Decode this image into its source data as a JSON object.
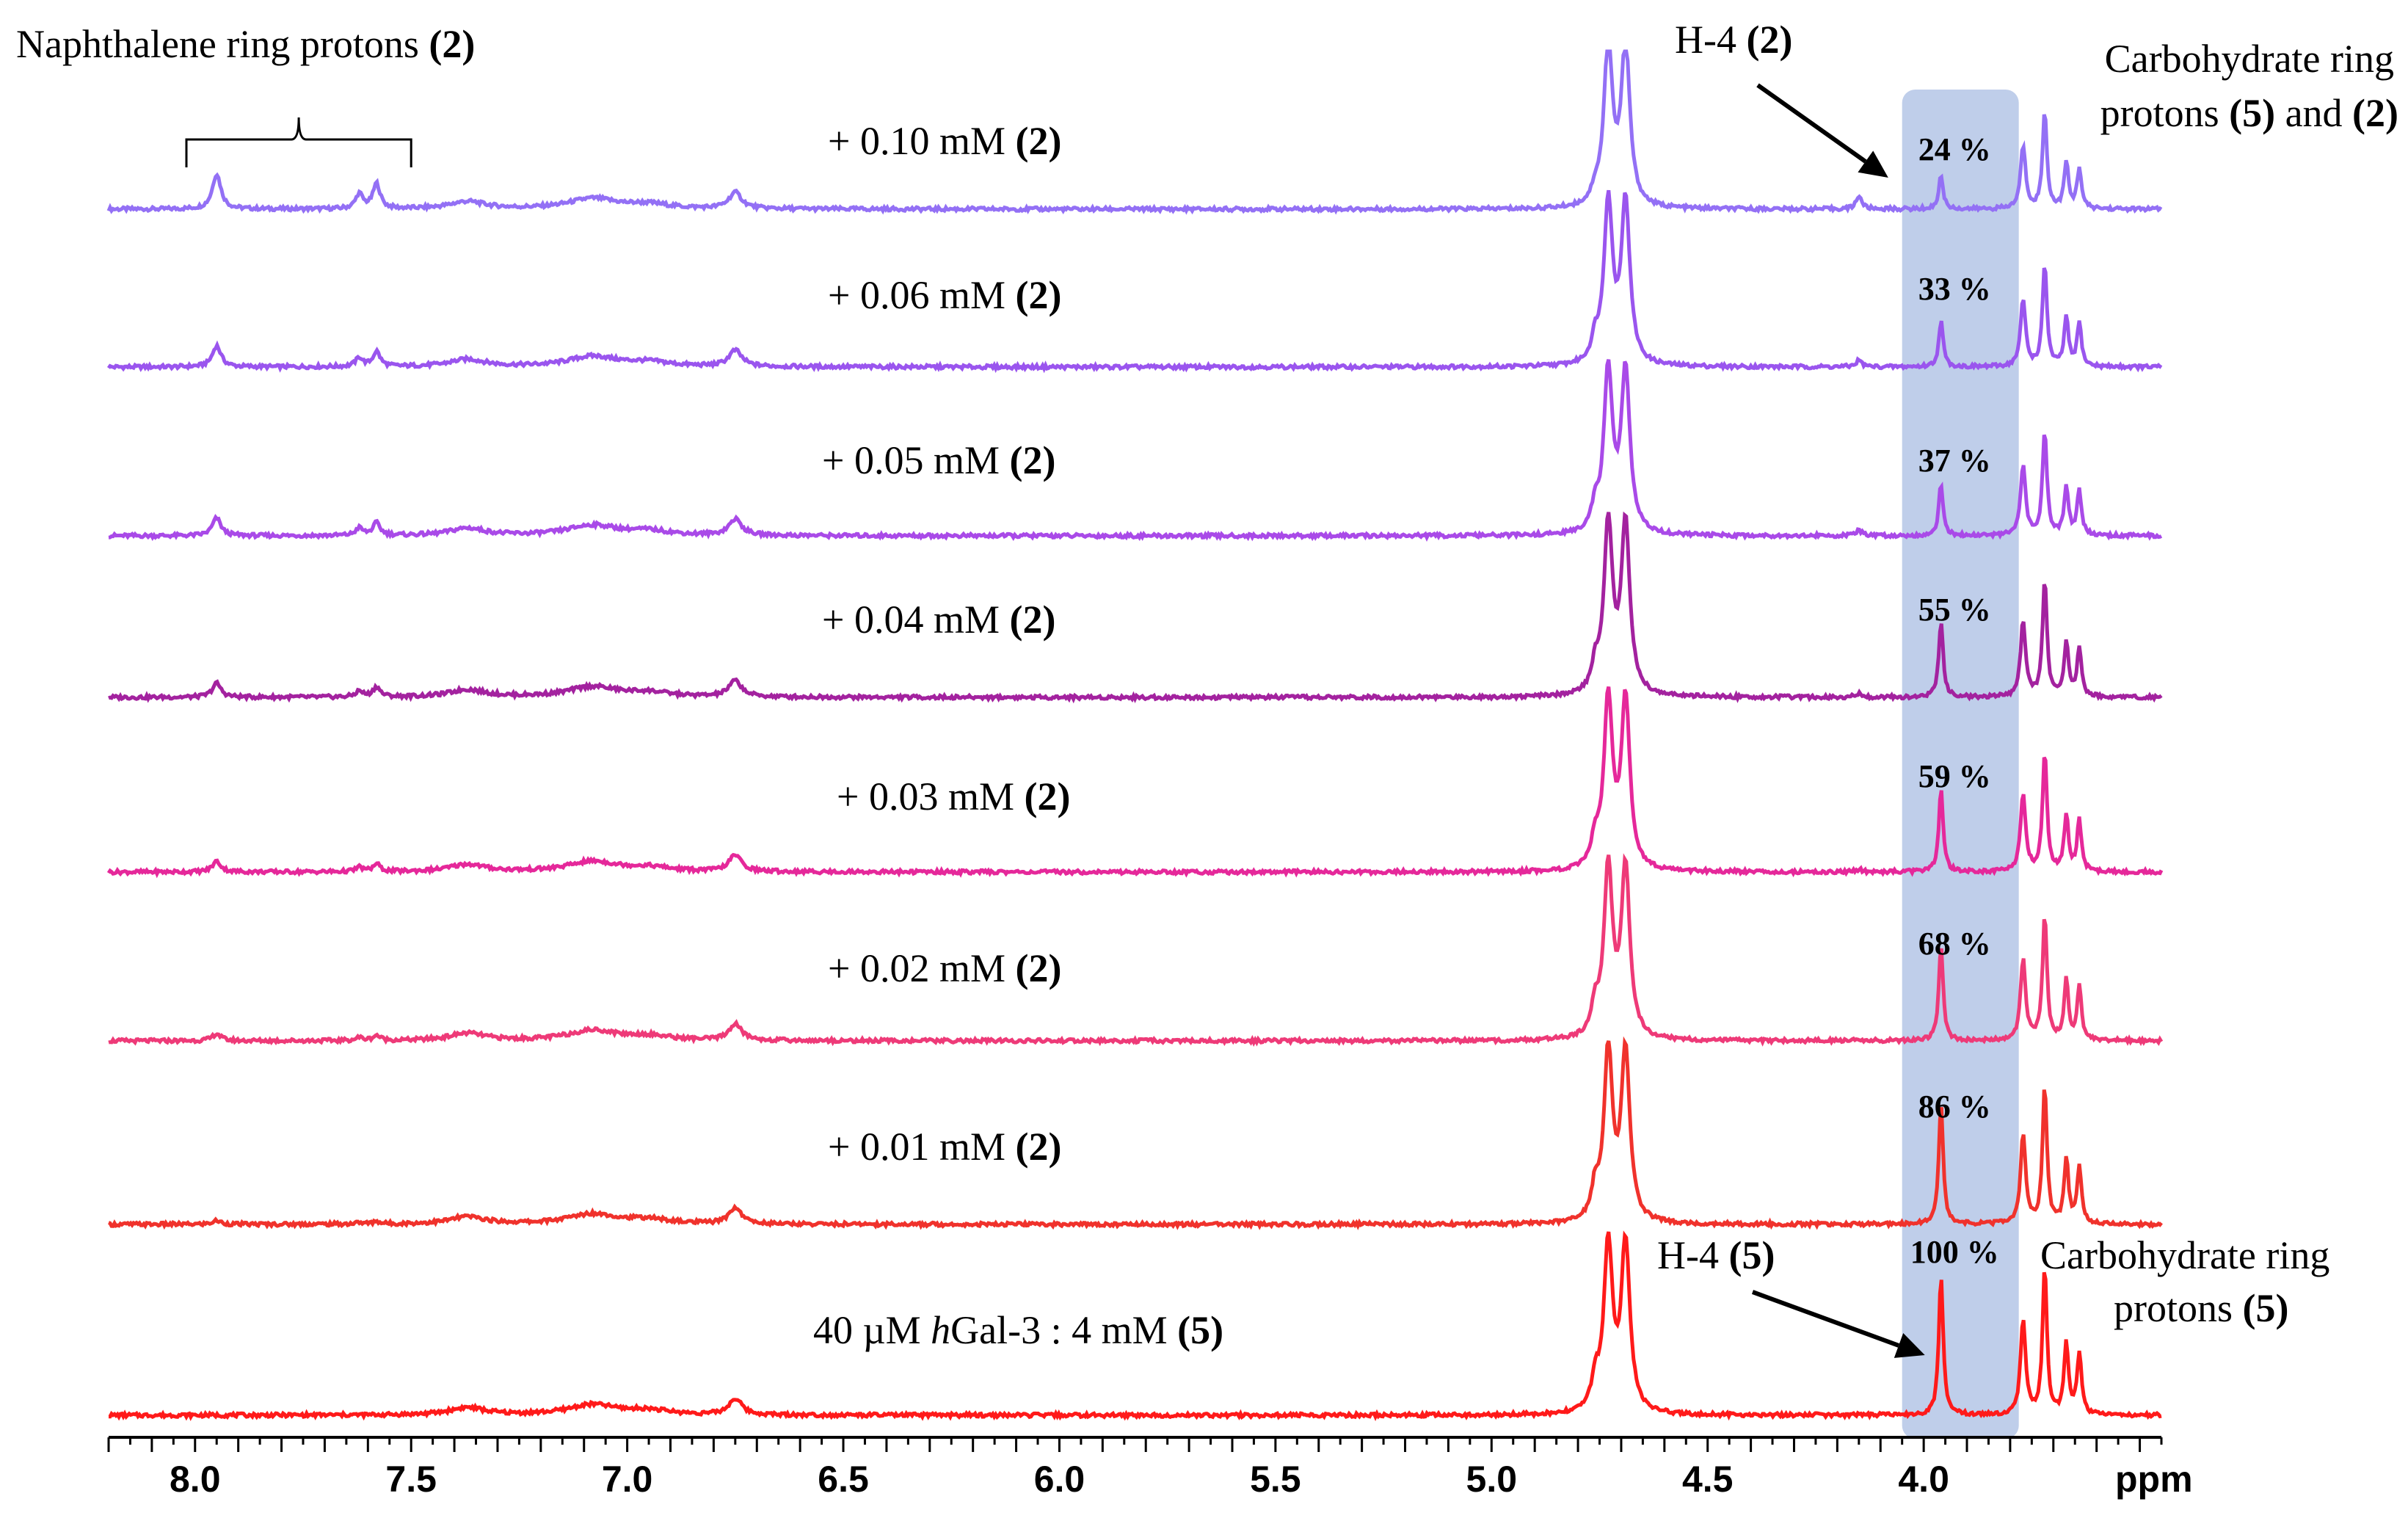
{
  "chart_data": {
    "type": "line",
    "title": "",
    "xlabel": "ppm",
    "ylabel": "",
    "xlim": [
      8.2,
      3.45
    ],
    "x_ticks": [
      {
        "value": 8.0,
        "label": "8.0"
      },
      {
        "value": 7.5,
        "label": "7.5"
      },
      {
        "value": 7.0,
        "label": "7.0"
      },
      {
        "value": 6.5,
        "label": "6.5"
      },
      {
        "value": 6.0,
        "label": "6.0"
      },
      {
        "value": 5.5,
        "label": "5.5"
      },
      {
        "value": 5.0,
        "label": "5.0"
      },
      {
        "value": 4.5,
        "label": "4.5"
      },
      {
        "value": 4.0,
        "label": "4.0"
      }
    ],
    "highlight_region_ppm": [
      4.05,
      3.78
    ],
    "series": [
      {
        "name_prefix": "+ 0.10 mM ",
        "name_cmpd": "(2)",
        "color": "#9370f5",
        "h4_label": "24 %",
        "h4_relative": 0.24,
        "naph": 1.0,
        "h4_2": 1.0
      },
      {
        "name_prefix": "+ 0.06 mM ",
        "name_cmpd": "(2)",
        "color": "#9a55ee",
        "h4_label": "33 %",
        "h4_relative": 0.33,
        "naph": 0.6,
        "h4_2": 0.5
      },
      {
        "name_prefix": "+ 0.05 mM ",
        "name_cmpd": "(2)",
        "color": "#a94ae8",
        "h4_label": "37 %",
        "h4_relative": 0.37,
        "naph": 0.5,
        "h4_2": 0.4
      },
      {
        "name_prefix": "+ 0.04 mM ",
        "name_cmpd": "(2)",
        "color": "#a3229f",
        "h4_label": "55 %",
        "h4_relative": 0.55,
        "naph": 0.4,
        "h4_2": 0.3
      },
      {
        "name_prefix": "+ 0.03 mM ",
        "name_cmpd": "(2)",
        "color": "#e5289a",
        "h4_label": "59 %",
        "h4_relative": 0.59,
        "naph": 0.3,
        "h4_2": 0.2
      },
      {
        "name_prefix": "+ 0.02 mM ",
        "name_cmpd": "(2)",
        "color": "#ee3a78",
        "h4_label": "68 %",
        "h4_relative": 0.68,
        "naph": 0.2,
        "h4_2": 0.1
      },
      {
        "name_prefix": "+ 0.01 mM ",
        "name_cmpd": "(2)",
        "color": "#f0322c",
        "h4_label": "86 %",
        "h4_relative": 0.86,
        "naph": 0.1,
        "h4_2": 0.0
      },
      {
        "name_prefix": "40 µM ",
        "name_italic": "h",
        "name_rest": "Gal-3 : 4 mM ",
        "name_cmpd": "(5)",
        "color": "#ff1a1a",
        "h4_label": "100 %",
        "h4_relative": 1.0,
        "naph": 0.0,
        "h4_2": 0.0
      }
    ],
    "annotations": {
      "naphthalene": {
        "text": "Naphthalene ring protons ",
        "cmpd": "(2)",
        "ppm_range": [
          8.02,
          7.5
        ]
      },
      "h4_2": {
        "text": "H-4 ",
        "cmpd": "(2)",
        "ppm": 4.15
      },
      "carb_top_line1": "Carbohydrate ring",
      "carb_top_line2_pre": "protons ",
      "carb_top_cmpd_a": "(5)",
      "carb_top_mid": " and ",
      "carb_top_cmpd_b": "(2)",
      "h4_5": {
        "text": "H-4 ",
        "cmpd": "(5)",
        "ppm": 3.96
      },
      "carb_bottom_line1": "Carbohydrate ring",
      "carb_bottom_line2_pre": "protons ",
      "carb_bottom_cmpd": "(5)"
    }
  }
}
